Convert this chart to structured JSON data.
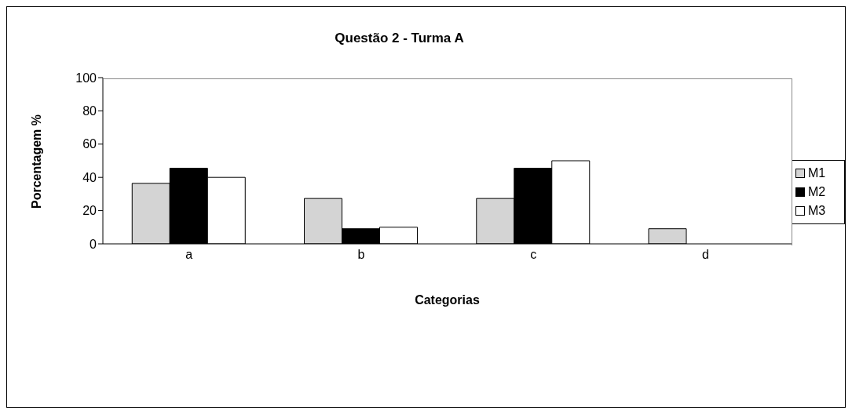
{
  "chart_data": {
    "type": "bar",
    "title": "Questão 2 - Turma A",
    "xlabel": "Categorias",
    "ylabel": "Porcentagem %",
    "categories": [
      "a",
      "b",
      "c",
      "d"
    ],
    "series": [
      {
        "name": "M1",
        "color": "#d4d4d4",
        "values": [
          36.4,
          27.3,
          27.3,
          9.1
        ]
      },
      {
        "name": "M2",
        "color": "#000000",
        "values": [
          45.5,
          9.1,
          45.5,
          0
        ]
      },
      {
        "name": "M3",
        "color": "#ffffff",
        "values": [
          40,
          10,
          50,
          0
        ]
      }
    ],
    "ylim": [
      0,
      100
    ],
    "yticks": [
      0,
      20,
      40,
      60,
      80,
      100
    ],
    "grid": false,
    "legend": "right"
  }
}
